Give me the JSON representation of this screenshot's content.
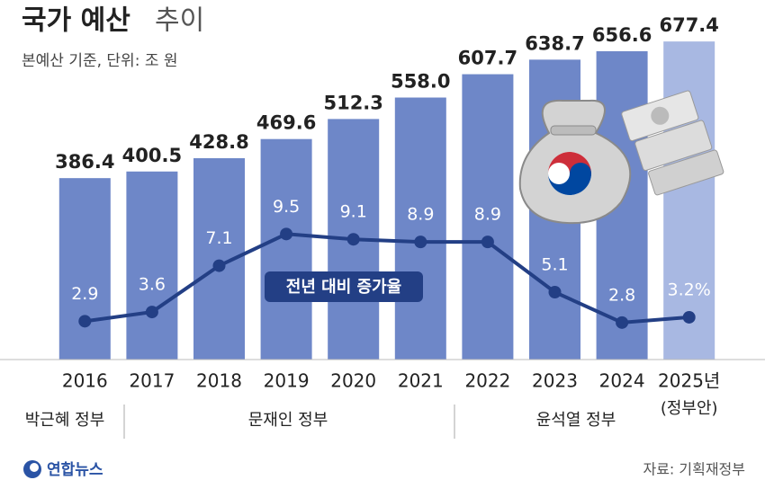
{
  "chart_data": {
    "type": "bar",
    "title": "국가 예산",
    "title_suffix": "추이",
    "subtitle": "본예산 기준, 단위: 조 원",
    "categories": [
      "2016",
      "2017",
      "2018",
      "2019",
      "2020",
      "2021",
      "2022",
      "2023",
      "2024",
      "2025년"
    ],
    "category_note": "(정부안)",
    "ylim": [
      0,
      760
    ],
    "y2lim": [
      0,
      27
    ],
    "series": [
      {
        "values": [
          386.4,
          400.5,
          428.8,
          469.6,
          512.3,
          558.0,
          607.7,
          638.7,
          656.6,
          677.4
        ],
        "value_labels": [
          "386.4",
          "400.5",
          "428.8",
          "469.6",
          "512.3",
          "558.0",
          "607.7",
          "638.7",
          "656.6",
          "677.4"
        ],
        "color": "#6e87c8",
        "colors": [
          "#6e87c8",
          "#6e87c8",
          "#6e87c8",
          "#6e87c8",
          "#6e87c8",
          "#6e87c8",
          "#6e87c8",
          "#6e87c8",
          "#6e87c8",
          "#a8b8e2"
        ]
      },
      {
        "name": "전년 대비 증가율",
        "type": "line",
        "axis": "y2",
        "values": [
          2.9,
          3.6,
          7.1,
          9.5,
          9.1,
          8.9,
          8.9,
          5.1,
          2.8,
          3.2
        ],
        "value_labels": [
          "2.9",
          "3.6",
          "7.1",
          "9.5",
          "9.1",
          "8.9",
          "8.9",
          "5.1",
          "2.8",
          "3.2%"
        ],
        "color": "#233f85"
      }
    ],
    "governments": [
      "박근혜 정부",
      "문재인 정부",
      "윤석열 정부"
    ],
    "logo": "연합뉴스",
    "source": "자료: 기획재정부"
  }
}
